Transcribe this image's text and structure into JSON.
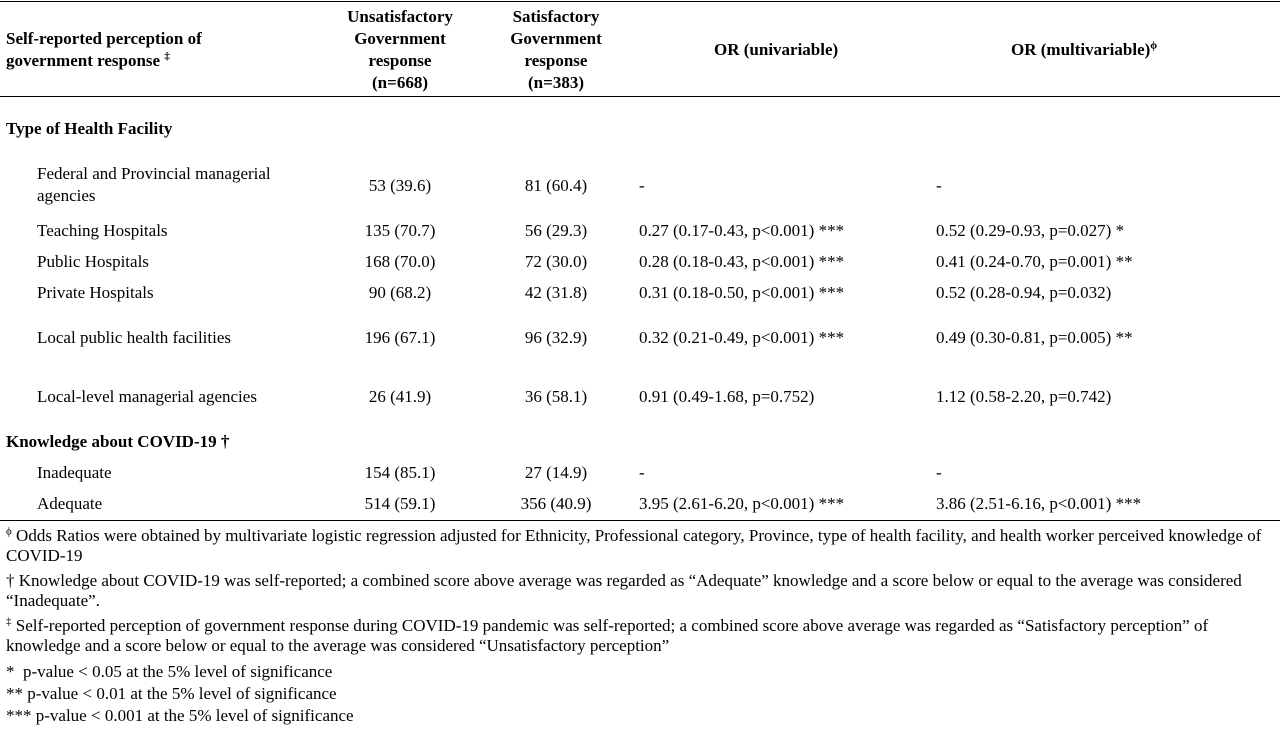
{
  "header": {
    "col1_line1": "Self-reported perception of",
    "col1_line2": "government response",
    "col1_mark": "‡",
    "col2": [
      "Unsatisfactory",
      "Government",
      "response",
      "(n=668)"
    ],
    "col3": [
      "Satisfactory",
      "Government",
      "response",
      "(n=383)"
    ],
    "col4": "OR (univariable)",
    "col5": "OR (multivariable)",
    "col5_mark": "ϕ"
  },
  "sections": [
    {
      "title": "Type of Health Facility",
      "rows": [
        {
          "label_lines": [
            "Federal and Provincial managerial",
            "agencies"
          ],
          "unsat": "53 (39.6)",
          "sat": "81 (60.4)",
          "or_uni": "-",
          "or_multi": "-"
        },
        {
          "label_lines": [
            "Teaching Hospitals"
          ],
          "unsat": "135 (70.7)",
          "sat": "56 (29.3)",
          "or_uni": "0.27 (0.17-0.43, p<0.001) ***",
          "or_multi": "0.52 (0.29-0.93, p=0.027) *"
        },
        {
          "label_lines": [
            "Public Hospitals"
          ],
          "unsat": "168 (70.0)",
          "sat": "72 (30.0)",
          "or_uni": "0.28 (0.18-0.43, p<0.001) ***",
          "or_multi": "0.41 (0.24-0.70, p=0.001) **"
        },
        {
          "label_lines": [
            "Private Hospitals"
          ],
          "unsat": "90 (68.2)",
          "sat": "42 (31.8)",
          "or_uni": "0.31 (0.18-0.50, p<0.001) ***",
          "or_multi": "0.52 (0.28-0.94, p=0.032)"
        },
        {
          "label_lines": [
            "Local public health facilities"
          ],
          "unsat": "196 (67.1)",
          "sat": "96 (32.9)",
          "or_uni": "0.32 (0.21-0.49, p<0.001) ***",
          "or_multi": "0.49 (0.30-0.81, p=0.005) **"
        },
        {
          "label_lines": [
            "Local-level managerial agencies"
          ],
          "unsat": "26 (41.9)",
          "sat": "36 (58.1)",
          "or_uni": "0.91 (0.49-1.68, p=0.752)",
          "or_multi": "1.12 (0.58-2.20, p=0.742)"
        }
      ]
    },
    {
      "title": "Knowledge about COVID-19 †",
      "rows": [
        {
          "label_lines": [
            "Inadequate"
          ],
          "unsat": "154 (85.1)",
          "sat": "27 (14.9)",
          "or_uni": "-",
          "or_multi": "-"
        },
        {
          "label_lines": [
            "Adequate"
          ],
          "unsat": "514 (59.1)",
          "sat": "356 (40.9)",
          "or_uni": "3.95 (2.61-6.20, p<0.001) ***",
          "or_multi": "3.86 (2.51-6.16, p<0.001) ***"
        }
      ]
    }
  ],
  "footnotes": [
    {
      "mark": "ϕ",
      "text": " Odds Ratios were obtained by multivariate logistic regression adjusted for Ethnicity, Professional category, Province, type of health facility, and health worker perceived knowledge of COVID-19"
    },
    {
      "mark": "",
      "text": "† Knowledge about COVID-19 was self-reported; a combined score above average was regarded as “Adequate” knowledge and a score below or equal to the average was considered “Inadequate”."
    },
    {
      "mark": "‡",
      "text": " Self-reported perception of government response during COVID-19 pandemic was self-reported; a combined score above average was regarded as “Satisfactory perception” of knowledge and a score below or equal to the average was considered “Unsatisfactory perception”"
    },
    {
      "mark": "",
      "text": "*  p-value < 0.05 at the 5% level of significance"
    },
    {
      "mark": "",
      "text": "** p-value < 0.01 at the 5% level of significance"
    },
    {
      "mark": "",
      "text": "*** p-value < 0.001 at the 5% level of significance"
    }
  ]
}
